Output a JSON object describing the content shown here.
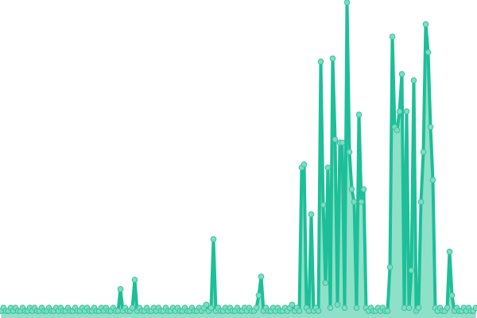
{
  "chart_data": {
    "type": "line",
    "title": "",
    "xlabel": "",
    "ylabel": "",
    "ylim": [
      0,
      100
    ],
    "grid": false,
    "markers": true,
    "area_fill": true,
    "colors": {
      "line": "#1dbf98",
      "area": "#8ee0c8",
      "marker_fill": "#7fdcc2",
      "marker_stroke": "#35c49e"
    },
    "values": [
      1,
      2,
      1,
      1,
      2,
      1,
      2,
      1,
      1,
      2,
      1,
      1,
      2,
      1,
      2,
      1,
      1,
      2,
      1,
      1,
      2,
      1,
      1,
      2,
      1,
      2,
      1,
      1,
      2,
      1,
      1,
      2,
      1,
      1,
      2,
      1,
      2,
      1,
      1,
      2,
      1,
      1,
      2,
      1,
      2,
      1,
      1,
      2,
      1,
      1,
      8,
      1,
      2,
      1,
      1,
      2,
      11,
      1,
      2,
      1,
      1,
      2,
      1,
      1,
      2,
      1,
      2,
      1,
      1,
      2,
      1,
      1,
      2,
      1,
      2,
      1,
      1,
      2,
      1,
      1,
      2,
      1,
      1,
      2,
      1,
      2,
      3,
      1,
      2,
      24,
      1,
      2,
      1,
      1,
      2,
      1,
      2,
      1,
      1,
      2,
      1,
      1,
      2,
      1,
      2,
      1,
      1,
      2,
      6,
      12,
      1,
      2,
      1,
      1,
      2,
      1,
      2,
      1,
      1,
      2,
      1,
      2,
      3,
      1,
      2,
      1,
      47,
      48,
      2,
      1,
      32,
      1,
      2,
      1,
      81,
      35,
      10,
      47,
      2,
      82,
      56,
      3,
      55,
      55,
      2,
      100,
      52,
      40,
      36,
      2,
      64,
      36,
      40,
      2,
      1,
      2,
      1,
      1,
      2,
      1,
      2,
      1,
      1,
      15,
      89,
      60,
      59,
      65,
      77,
      2,
      65,
      2,
      14,
      75,
      1,
      2,
      36,
      52,
      93,
      84,
      60,
      43,
      2,
      1,
      2,
      1,
      1,
      2,
      20,
      6,
      1,
      2,
      1,
      1,
      2,
      1,
      2,
      1,
      1,
      2
    ]
  }
}
